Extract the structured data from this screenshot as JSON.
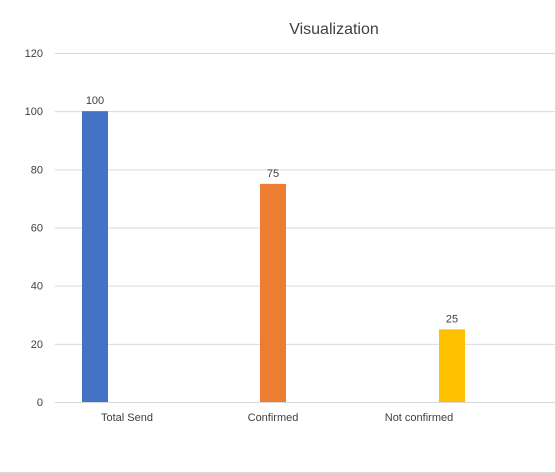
{
  "chart_data": {
    "type": "bar",
    "title": "Visualization",
    "categories": [
      "Total Send",
      "Confirmed",
      "Not confirmed"
    ],
    "series": [
      {
        "values": [
          100,
          75,
          25
        ],
        "colors": [
          "#4472C4",
          "#ED7D31",
          "#FFC000"
        ]
      }
    ],
    "data_labels": [
      "100",
      "75",
      "25"
    ],
    "y_ticks": [
      "0",
      "20",
      "40",
      "60",
      "80",
      "100",
      "120"
    ],
    "ylim": [
      0,
      120
    ],
    "xlabel": "",
    "ylabel": "",
    "grid": true,
    "legend": "none"
  }
}
